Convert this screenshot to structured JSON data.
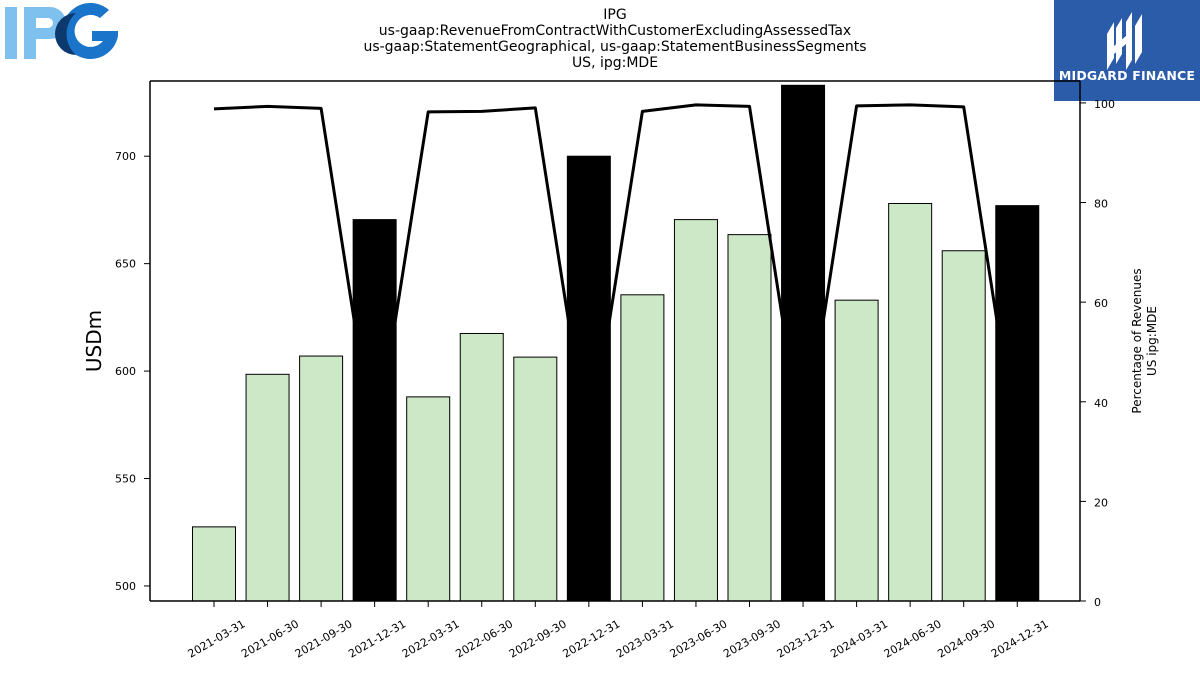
{
  "header": {
    "title_lines": [
      "IPG",
      "us-gaap:RevenueFromContractWithCustomerExcludingAssessedTax",
      "us-gaap:StatementGeographical, us-gaap:StatementBusinessSegments",
      "US, ipg:MDE"
    ]
  },
  "logos": {
    "left": {
      "text": "IPG",
      "colors": [
        "#7fc1ee",
        "#1a74c9",
        "#0d3a6e"
      ]
    },
    "right": {
      "text": "MIDGARD FINANCE",
      "background": "#2a5caa"
    }
  },
  "chart_data": {
    "type": "bar",
    "categories": [
      "2021-03-31",
      "2021-06-30",
      "2021-09-30",
      "2021-12-31",
      "2022-03-31",
      "2022-06-30",
      "2022-09-30",
      "2022-12-31",
      "2023-03-31",
      "2023-06-30",
      "2023-09-30",
      "2023-12-31",
      "2024-03-31",
      "2024-06-30",
      "2024-09-30",
      "2024-12-31"
    ],
    "series": [
      {
        "axis": "left",
        "type": "bar",
        "values": [
          527.5,
          598.5,
          607,
          670.5,
          588,
          617.5,
          606.5,
          700,
          635.5,
          670.5,
          663.5,
          733,
          633,
          678,
          656,
          677
        ],
        "colors": [
          "#cde8c6",
          "#cde8c6",
          "#cde8c6",
          "#000000",
          "#cde8c6",
          "#cde8c6",
          "#cde8c6",
          "#000000",
          "#cde8c6",
          "#cde8c6",
          "#cde8c6",
          "#000000",
          "#cde8c6",
          "#cde8c6",
          "#cde8c6",
          "#000000"
        ]
      },
      {
        "axis": "right",
        "type": "line",
        "color": "#000000",
        "values": [
          98.8,
          99.3,
          98.9,
          30,
          98.2,
          98.3,
          99.0,
          30,
          98.3,
          99.6,
          99.3,
          30,
          99.4,
          99.6,
          99.2,
          30
        ]
      }
    ],
    "ylabel": "USDm",
    "y2label_lines": [
      "Percentage of Revenues",
      "US ipg:MDE"
    ],
    "ylim": [
      493,
      735
    ],
    "yticks": [
      500,
      550,
      600,
      650,
      700
    ],
    "y2lim": [
      0,
      104.4
    ],
    "y2ticks": [
      0,
      20,
      40,
      60,
      80,
      100
    ],
    "grid": false
  }
}
